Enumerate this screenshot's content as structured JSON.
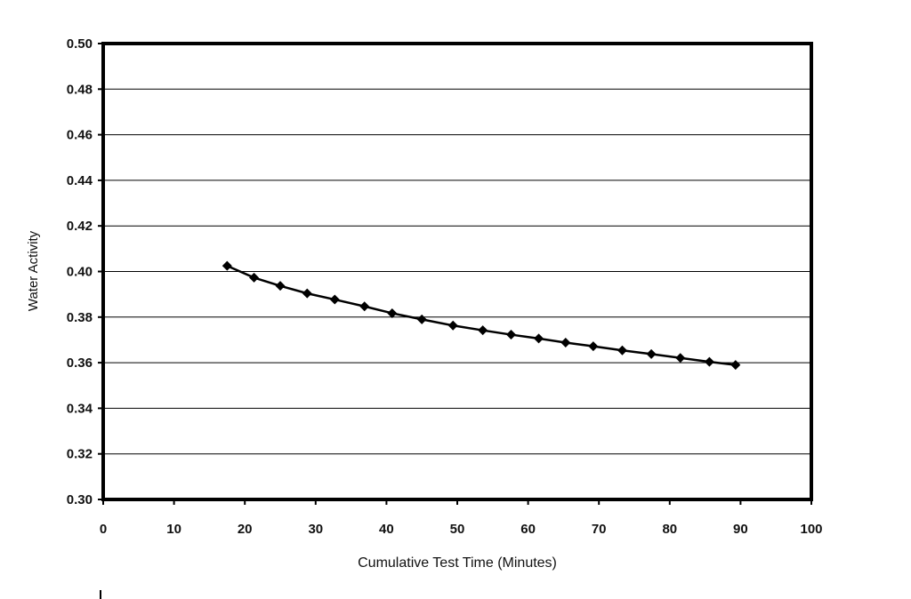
{
  "chart_data": {
    "type": "line",
    "xlabel": "Cumulative Test Time (Minutes)",
    "ylabel": "Water Activity",
    "xlim": [
      0,
      100
    ],
    "ylim": [
      0.3,
      0.5
    ],
    "x_ticks": [
      "0",
      "10",
      "20",
      "30",
      "40",
      "50",
      "60",
      "70",
      "80",
      "90",
      "100"
    ],
    "y_ticks": [
      "0.30",
      "0.32",
      "0.34",
      "0.36",
      "0.38",
      "0.40",
      "0.42",
      "0.44",
      "0.46",
      "0.48",
      "0.50"
    ],
    "grid": "horizontal",
    "series": [
      {
        "color": "#000000",
        "marker": "diamond",
        "x": [
          17.5,
          21.3,
          25.0,
          28.8,
          32.7,
          36.9,
          40.8,
          45.0,
          49.4,
          53.6,
          57.6,
          61.5,
          65.3,
          69.2,
          73.3,
          77.4,
          81.5,
          85.6,
          89.3
        ],
        "y": [
          0.4025,
          0.3973,
          0.3937,
          0.3904,
          0.3877,
          0.3847,
          0.3817,
          0.379,
          0.3763,
          0.3742,
          0.3723,
          0.3706,
          0.3688,
          0.3672,
          0.3654,
          0.3638,
          0.3621,
          0.3604,
          0.359
        ]
      }
    ]
  }
}
